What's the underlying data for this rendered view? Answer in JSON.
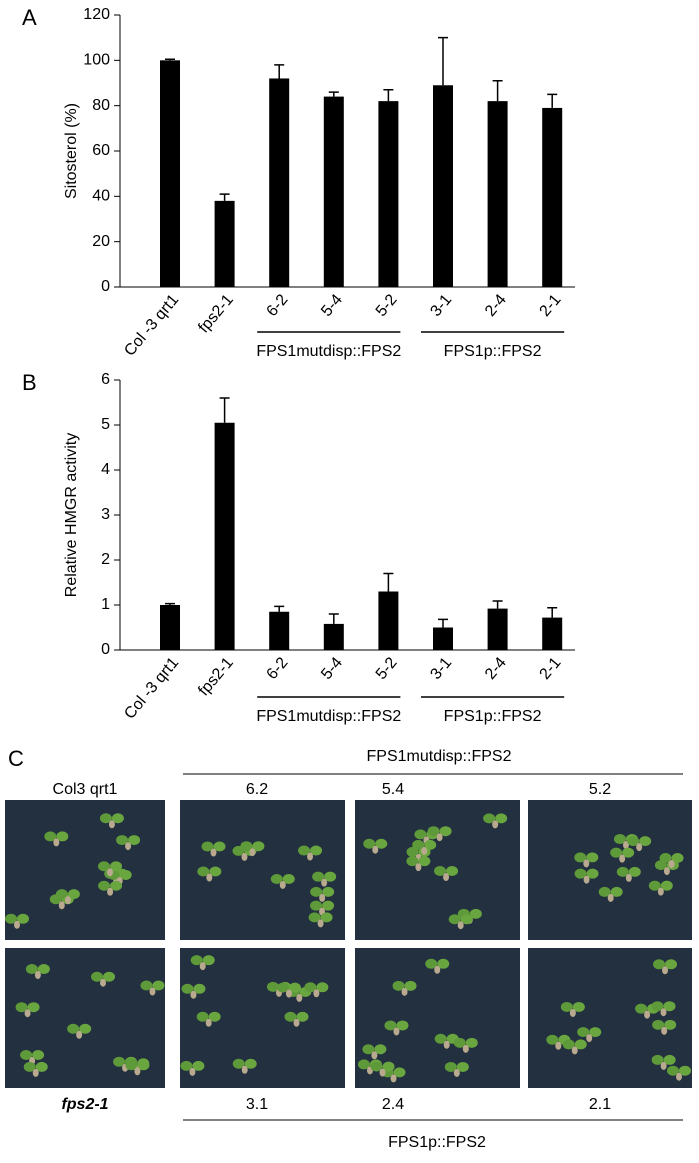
{
  "chart_data": [
    {
      "type": "bar",
      "panel": "A",
      "ylabel": "Sitosterol (%)",
      "categories": [
        "Col -3 qrt1",
        "fps2-1",
        "6-2",
        "5-4",
        "5-2",
        "3-1",
        "2-4",
        "2-1"
      ],
      "values": [
        100,
        38,
        92,
        84,
        82,
        89,
        82,
        79
      ],
      "errors": [
        0.5,
        3,
        6,
        2,
        5,
        21,
        9,
        6
      ],
      "color": "#000000",
      "ylim": [
        0,
        120
      ],
      "yticks": [
        0,
        20,
        40,
        60,
        80,
        100,
        120
      ],
      "groups": [
        "FPS1mutdisp::FPS2",
        "FPS1p::FPS2"
      ]
    },
    {
      "type": "bar",
      "panel": "B",
      "ylabel": "Relative HMGR activity",
      "categories": [
        "Col -3 qrt1",
        "fps2-1",
        "6-2",
        "5-4",
        "5-2",
        "3-1",
        "2-4",
        "2-1"
      ],
      "values": [
        1.0,
        5.05,
        0.85,
        0.58,
        1.3,
        0.5,
        0.92,
        0.72
      ],
      "errors": [
        0.03,
        0.55,
        0.12,
        0.22,
        0.4,
        0.18,
        0.17,
        0.22
      ],
      "color": "#000000",
      "ylim": [
        0,
        6
      ],
      "yticks": [
        0,
        1,
        2,
        3,
        4,
        5,
        6
      ],
      "groups": [
        "FPS1mutdisp::FPS2",
        "FPS1p::FPS2"
      ]
    }
  ],
  "panel_c": {
    "panel": "C",
    "top_group": "FPS1mutdisp::FPS2",
    "bottom_group": "FPS1p::FPS2",
    "top_labels": [
      "Col3 qrt1",
      "6.2",
      "5.4",
      "5.2"
    ],
    "bottom_labels": [
      "fps2-1",
      "3.1",
      "2.4",
      "2.1"
    ]
  }
}
